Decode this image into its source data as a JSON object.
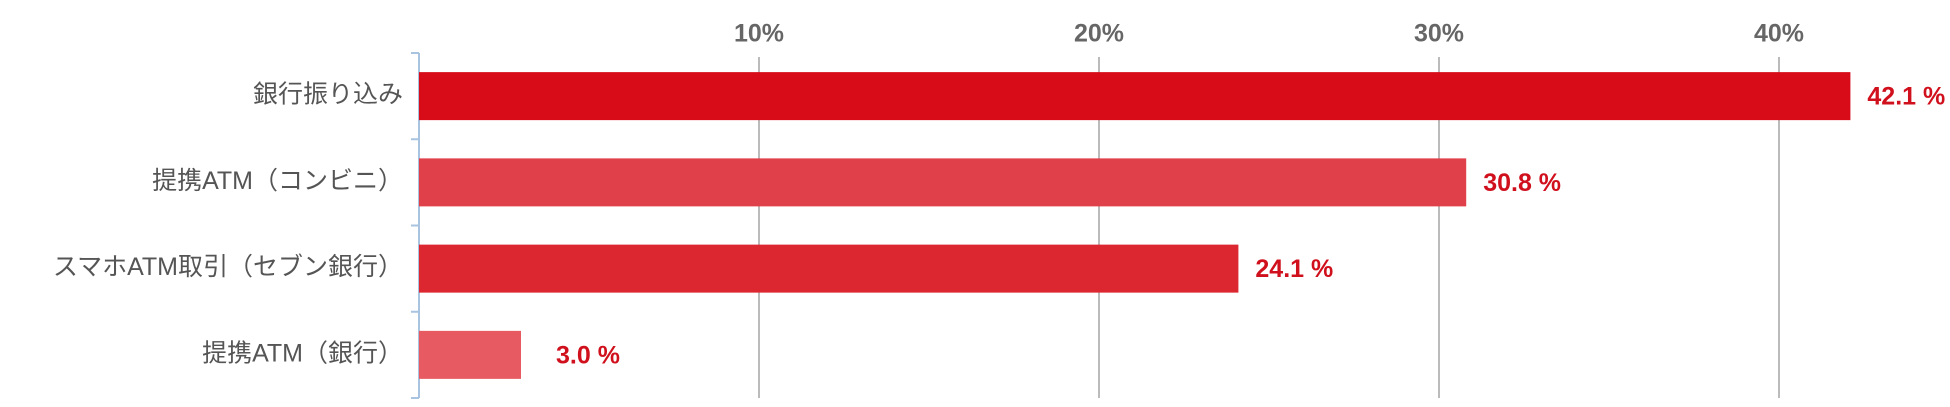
{
  "chart_data": {
    "type": "barh",
    "categories": [
      "銀行振り込み",
      "提携ATM（コンビニ）",
      "スマホATM取引（セブン銀行）",
      "提携ATM（銀行）"
    ],
    "values": [
      42.1,
      30.8,
      24.1,
      3.0
    ],
    "value_labels": [
      "42.1 %",
      "30.8 %",
      "24.1 %",
      "3.0 %"
    ],
    "colors": [
      "#d80c18",
      "#e0404a",
      "#dc2630",
      "#e85a62"
    ],
    "xlim": [
      0,
      45
    ],
    "xticks": [
      {
        "value": 10,
        "label": "10%"
      },
      {
        "value": 20,
        "label": "20%"
      },
      {
        "value": 30,
        "label": "30%"
      },
      {
        "value": 40,
        "label": "40%"
      }
    ],
    "grid": true
  }
}
